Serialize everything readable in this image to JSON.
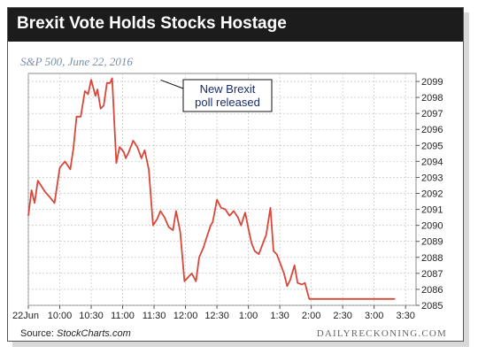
{
  "header": {
    "title": "Brexit Vote Holds Stocks Hostage"
  },
  "subtitle": "S&P 500, June 22, 2016",
  "footer": {
    "source_label": "Source:",
    "source_name": "StockCharts.com",
    "brand": "DAILYRECKONING.COM"
  },
  "colors": {
    "line": "#d9473a",
    "header_bg": "#1c1c1c",
    "grid": "#bbbbbb",
    "annotation": "#1a2b6b"
  },
  "chart_data": {
    "type": "line",
    "title": "Brexit Vote Holds Stocks Hostage",
    "subtitle": "S&P 500, June 22, 2016",
    "xlabel": "",
    "ylabel": "",
    "xlim": [
      0,
      370
    ],
    "ylim": [
      2085,
      2099.5
    ],
    "grid": true,
    "y_axis_side": "right",
    "x_ticks": [
      {
        "label": "22Jun",
        "value": 0
      },
      {
        "label": "10:00",
        "value": 30
      },
      {
        "label": "10:30",
        "value": 60
      },
      {
        "label": "11:00",
        "value": 90
      },
      {
        "label": "11:30",
        "value": 120
      },
      {
        "label": "12:00",
        "value": 150
      },
      {
        "label": "12:30",
        "value": 180
      },
      {
        "label": "1:00",
        "value": 210
      },
      {
        "label": "1:30",
        "value": 240
      },
      {
        "label": "2:00",
        "value": 270
      },
      {
        "label": "2:30",
        "value": 300
      },
      {
        "label": "3:00",
        "value": 330
      },
      {
        "label": "3:30",
        "value": 360
      }
    ],
    "y_ticks": [
      2085,
      2086,
      2087,
      2088,
      2089,
      2090,
      2091,
      2092,
      2093,
      2094,
      2095,
      2096,
      2097,
      2098,
      2099
    ],
    "series": [
      {
        "name": "",
        "x": [
          0,
          3,
          6,
          9,
          13,
          16,
          20,
          25,
          30,
          35,
          40,
          43,
          46,
          50,
          54,
          57,
          60,
          64,
          66,
          69,
          72,
          75,
          78,
          80,
          84,
          87,
          91,
          93,
          96,
          100,
          104,
          108,
          111,
          115,
          119,
          123,
          126,
          130,
          134,
          138,
          141,
          145,
          149,
          153,
          156,
          160,
          163,
          167,
          170,
          174,
          176,
          180,
          184,
          188,
          192,
          196,
          200,
          203,
          207,
          210,
          213,
          216,
          220,
          224,
          227,
          231,
          234,
          237,
          240,
          244,
          247,
          250,
          254,
          257,
          261,
          264,
          268,
          271,
          275,
          278,
          282,
          285,
          289,
          292,
          295,
          298,
          301,
          304,
          308,
          311,
          314,
          317,
          320,
          324,
          328,
          331,
          335,
          339,
          343,
          346,
          350
        ],
        "y": [
          2090.6,
          2092.2,
          2091.4,
          2092.8,
          2092.4,
          2092.1,
          2091.8,
          2091.4,
          2093.6,
          2094.0,
          2093.5,
          2094.8,
          2096.8,
          2096.8,
          2098.4,
          2098.2,
          2099.1,
          2098.1,
          2098.5,
          2097.3,
          2097.5,
          2098.9,
          2098.9,
          2099.2,
          2093.9,
          2094.9,
          2094.6,
          2094.2,
          2094.6,
          2095.3,
          2094.9,
          2094.2,
          2094.7,
          2093.5,
          2090.0,
          2090.4,
          2090.9,
          2090.5,
          2089.9,
          2089.7,
          2090.9,
          2089.6,
          2086.5,
          2086.8,
          2087.0,
          2086.5,
          2088.0,
          2088.6,
          2089.2,
          2090.0,
          2090.2,
          2091.6,
          2091.1,
          2091.0,
          2090.6,
          2090.9,
          2090.5,
          2090.0,
          2090.8,
          2089.8,
          2088.9,
          2088.4,
          2088.2,
          2088.9,
          2089.4,
          2091.1,
          2088.4,
          2088.2,
          2087.7,
          2087.0,
          2086.2,
          2086.6,
          2087.5,
          2086.4,
          2086.3,
          2086.4,
          2085.4,
          2085.4,
          2085.4,
          2085.4,
          2085.4,
          2085.4,
          2085.4,
          2085.4,
          2085.4,
          2085.4,
          2085.4,
          2085.4,
          2085.4,
          2085.4,
          2085.4,
          2085.4,
          2085.4,
          2085.4,
          2085.4,
          2085.4,
          2085.4,
          2085.4,
          2085.4,
          2085.4,
          2085.4
        ]
      }
    ],
    "annotations": [
      {
        "text_line1": "New Brexit",
        "text_line2": "poll released",
        "x": 123,
        "y": 2099.2
      }
    ]
  }
}
